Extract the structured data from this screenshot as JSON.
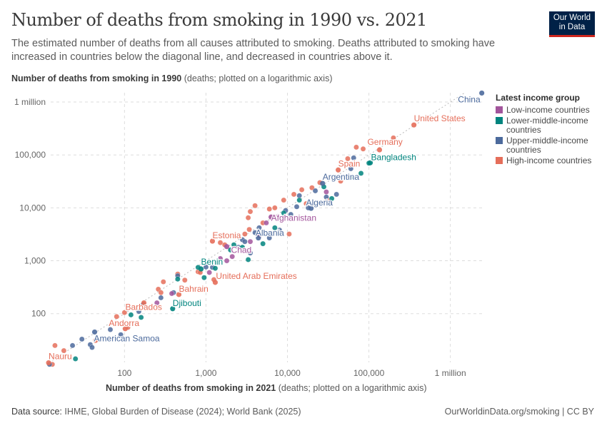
{
  "header": {
    "title": "Number of deaths from smoking in 1990 vs. 2021",
    "subtitle": "The estimated number of deaths from all causes attributed to smoking. Deaths attributed to smoking have increased in countries below the diagonal line, and decreased in countries above it.",
    "logo_line1": "Our World",
    "logo_line2": "in Data"
  },
  "axes": {
    "y_title": "Number of deaths from smoking in 1990",
    "y_unit": "(deaths; plotted on a logarithmic axis)",
    "x_title": "Number of deaths from smoking in 2021",
    "x_unit": "(deaths; plotted on a logarithmic axis)"
  },
  "legend": {
    "title": "Latest income group",
    "items": [
      {
        "key": "L",
        "label": "Low-income countries",
        "color": "#a2559c"
      },
      {
        "key": "LM",
        "label": "Lower-middle-income countries",
        "color": "#00847e"
      },
      {
        "key": "UM",
        "label": "Upper-middle-income countries",
        "color": "#4c6a9c"
      },
      {
        "key": "H",
        "label": "High-income countries",
        "color": "#e56e5a"
      }
    ]
  },
  "footer": {
    "source_label": "Data source:",
    "source": "IHME, Global Burden of Disease (2024); World Bank (2025)",
    "credit": "OurWorldinData.org/smoking | CC BY"
  },
  "chart_data": {
    "type": "scatter",
    "title": "Number of deaths from smoking in 1990 vs. 2021",
    "xlabel": "Number of deaths from smoking in 2021",
    "ylabel": "Number of deaths from smoking in 1990",
    "xscale": "log",
    "yscale": "log",
    "xlim": [
      11,
      2600000
    ],
    "ylim": [
      12,
      1500000
    ],
    "x_ticks": [
      {
        "v": 100,
        "label": "100"
      },
      {
        "v": 1000,
        "label": "1,000"
      },
      {
        "v": 10000,
        "label": "10,000"
      },
      {
        "v": 100000,
        "label": "100,000"
      },
      {
        "v": 1000000,
        "label": "1 million"
      }
    ],
    "y_ticks": [
      {
        "v": 100,
        "label": "100"
      },
      {
        "v": 1000,
        "label": "1,000"
      },
      {
        "v": 10000,
        "label": "10,000"
      },
      {
        "v": 100000,
        "label": "100,000"
      },
      {
        "v": 1000000,
        "label": "1 million"
      }
    ],
    "grid": true,
    "diagonal_line": true,
    "legend_position": "right",
    "labeled_points": [
      {
        "name": "China",
        "x": 2430000,
        "y": 1480000,
        "group": "UM"
      },
      {
        "name": "United States",
        "x": 357000,
        "y": 369000,
        "group": "H"
      },
      {
        "name": "Germany",
        "x": 135000,
        "y": 125000,
        "group": "H"
      },
      {
        "name": "Bangladesh",
        "x": 104000,
        "y": 71000,
        "group": "LM"
      },
      {
        "name": "Spain",
        "x": 42000,
        "y": 52000,
        "group": "H"
      },
      {
        "name": "Argentina",
        "x": 27000,
        "y": 29000,
        "group": "UM"
      },
      {
        "name": "Algeria",
        "x": 19500,
        "y": 9800,
        "group": "UM"
      },
      {
        "name": "Afghanistan",
        "x": 6300,
        "y": 6700,
        "group": "L"
      },
      {
        "name": "Albania",
        "x": 4400,
        "y": 2700,
        "group": "UM"
      },
      {
        "name": "Estonia",
        "x": 1200,
        "y": 2350,
        "group": "H"
      },
      {
        "name": "Chad",
        "x": 1800,
        "y": 1850,
        "group": "L"
      },
      {
        "name": "Benin",
        "x": 870,
        "y": 700,
        "group": "LM"
      },
      {
        "name": "United Arab Emirates",
        "x": 1300,
        "y": 390,
        "group": "H"
      },
      {
        "name": "Bahrain",
        "x": 465,
        "y": 230,
        "group": "H"
      },
      {
        "name": "Djibouti",
        "x": 390,
        "y": 124,
        "group": "LM"
      },
      {
        "name": "Barbados",
        "x": 173,
        "y": 160,
        "group": "H"
      },
      {
        "name": "Andorra",
        "x": 102,
        "y": 52,
        "group": "H"
      },
      {
        "name": "American Samoa",
        "x": 43,
        "y": 45,
        "group": "UM"
      },
      {
        "name": "Nauru",
        "x": 11.7,
        "y": 11.8,
        "group": "H"
      }
    ],
    "other_points": {
      "H": [
        [
          14,
          25
        ],
        [
          18,
          20
        ],
        [
          13,
          11
        ],
        [
          44,
          31
        ],
        [
          80,
          88
        ],
        [
          100,
          105
        ],
        [
          110,
          55
        ],
        [
          260,
          290
        ],
        [
          280,
          250
        ],
        [
          300,
          400
        ],
        [
          450,
          560
        ],
        [
          550,
          430
        ],
        [
          800,
          620
        ],
        [
          850,
          600
        ],
        [
          1250,
          440
        ],
        [
          1500,
          2200
        ],
        [
          1700,
          2000
        ],
        [
          3000,
          3200
        ],
        [
          3300,
          6500
        ],
        [
          3400,
          3900
        ],
        [
          3500,
          8500
        ],
        [
          4000,
          11000
        ],
        [
          5000,
          5200
        ],
        [
          6000,
          9500
        ],
        [
          7000,
          10000
        ],
        [
          9000,
          14000
        ],
        [
          10500,
          3200
        ],
        [
          12000,
          18000
        ],
        [
          15000,
          22000
        ],
        [
          17000,
          12000
        ],
        [
          20000,
          24000
        ],
        [
          25000,
          30000
        ],
        [
          31000,
          14000
        ],
        [
          45000,
          32000
        ],
        [
          55000,
          85000
        ],
        [
          70000,
          140000
        ],
        [
          85000,
          130000
        ],
        [
          200000,
          210000
        ]
      ],
      "UM": [
        [
          12,
          11
        ],
        [
          23,
          25
        ],
        [
          30,
          33
        ],
        [
          38,
          26
        ],
        [
          40,
          23
        ],
        [
          67,
          50
        ],
        [
          90,
          40
        ],
        [
          150,
          110
        ],
        [
          170,
          150
        ],
        [
          280,
          200
        ],
        [
          400,
          250
        ],
        [
          450,
          520
        ],
        [
          1000,
          760
        ],
        [
          1200,
          750
        ],
        [
          2500,
          1800
        ],
        [
          2800,
          2500
        ],
        [
          3000,
          2300
        ],
        [
          4000,
          3400
        ],
        [
          3500,
          1400
        ],
        [
          4500,
          4200
        ],
        [
          6000,
          2700
        ],
        [
          8000,
          3800
        ],
        [
          9500,
          8900
        ],
        [
          11000,
          7500
        ],
        [
          13000,
          10500
        ],
        [
          14000,
          17000
        ],
        [
          18000,
          10000
        ],
        [
          22000,
          21000
        ],
        [
          30000,
          16000
        ],
        [
          40000,
          18000
        ],
        [
          60000,
          55000
        ],
        [
          65000,
          88000
        ]
      ],
      "LM": [
        [
          25,
          14
        ],
        [
          120,
          95
        ],
        [
          160,
          85
        ],
        [
          450,
          450
        ],
        [
          950,
          480
        ],
        [
          800,
          750
        ],
        [
          1300,
          720
        ],
        [
          2000,
          1600
        ],
        [
          2200,
          2000
        ],
        [
          2800,
          1800
        ],
        [
          3300,
          1050
        ],
        [
          5000,
          2100
        ],
        [
          7000,
          4200
        ],
        [
          9000,
          8000
        ],
        [
          14000,
          14000
        ],
        [
          28000,
          25000
        ],
        [
          35000,
          15000
        ],
        [
          60000,
          38000
        ],
        [
          80000,
          45000
        ],
        [
          100000,
          70000
        ]
      ],
      "L": [
        [
          250,
          160
        ],
        [
          380,
          240
        ],
        [
          1100,
          600
        ],
        [
          1500,
          1100
        ],
        [
          1800,
          1000
        ],
        [
          2100,
          1200
        ],
        [
          3500,
          2300
        ],
        [
          4500,
          3000
        ],
        [
          5500,
          5200
        ],
        [
          7500,
          6700
        ],
        [
          30000,
          20000
        ]
      ]
    }
  }
}
